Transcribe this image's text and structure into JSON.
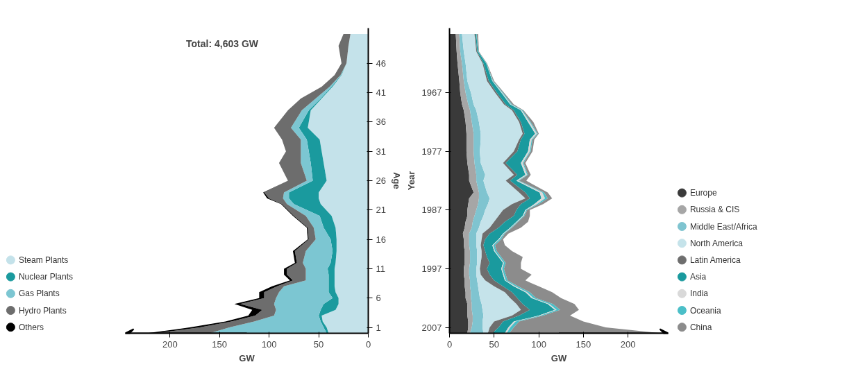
{
  "chart_data": [
    {
      "type": "area",
      "stacked": true,
      "orientation": "horizontal",
      "xlabel": "GW",
      "ylabel": "Age",
      "annotations": [
        "Total: 4,603 GW"
      ],
      "x": [
        0,
        1,
        2,
        3,
        4,
        5,
        6,
        7,
        8,
        9,
        10,
        11,
        12,
        14,
        16,
        18,
        20,
        22,
        23,
        24,
        26,
        29,
        31,
        33,
        35,
        38,
        40,
        42,
        44,
        46,
        49,
        51
      ],
      "xlim": [
        245,
        0
      ],
      "xticks": [
        200,
        150,
        100,
        50,
        0
      ],
      "ylim": [
        0,
        52
      ],
      "yticks": [
        1,
        6,
        11,
        16,
        21,
        26,
        31,
        36,
        41,
        46
      ],
      "grid": false,
      "legend": "left",
      "series": [
        {
          "name": "Steam Plants",
          "color": "#c4e2ea",
          "values": [
            40,
            42,
            46,
            47,
            33,
            30,
            30,
            33,
            34,
            34,
            34,
            34,
            33,
            32,
            32,
            33,
            37,
            48,
            50,
            50,
            42,
            45,
            47,
            49,
            61,
            58,
            47,
            36,
            27,
            22,
            20,
            18
          ]
        },
        {
          "name": "Nuclear Plants",
          "color": "#1a9a9e",
          "values": [
            2,
            3,
            2,
            3,
            15,
            15,
            6,
            7,
            6,
            6,
            6,
            7,
            5,
            4,
            6,
            12,
            12,
            27,
            30,
            30,
            14,
            13,
            13,
            13,
            9,
            2,
            1,
            1,
            0.5,
            0,
            0,
            0
          ]
        },
        {
          "name": "Gas Plants",
          "color": "#7cc6d2",
          "values": [
            118,
            95,
            67,
            45,
            45,
            50,
            57,
            50,
            45,
            23,
            23,
            22,
            28,
            27,
            15,
            10,
            14,
            7,
            6,
            5,
            6,
            10,
            8,
            6,
            8,
            7,
            5,
            2,
            0.5,
            0,
            0,
            0
          ]
        },
        {
          "name": "Hydro Plants",
          "color": "#6d6d6d",
          "values": [
            55,
            30,
            23,
            19,
            14,
            34,
            12,
            15,
            7,
            13,
            19,
            19,
            6,
            11,
            7,
            6,
            12,
            5,
            14,
            20,
            19,
            22,
            15,
            19,
            17,
            14,
            15,
            8,
            6,
            5,
            10,
            7
          ]
        },
        {
          "name": "Others",
          "color": "#000000",
          "values": [
            9,
            10,
            6,
            7,
            10,
            6,
            5,
            5,
            5,
            3,
            3,
            3,
            2,
            2,
            1,
            1,
            1,
            1,
            2,
            1,
            0,
            0,
            0,
            0,
            0,
            0,
            0,
            0,
            0,
            0,
            0,
            0
          ]
        }
      ]
    },
    {
      "type": "area",
      "stacked": true,
      "orientation": "horizontal",
      "xlabel": "GW",
      "ylabel": "Year",
      "x": [
        1957,
        1960,
        1962,
        1965,
        1967,
        1969,
        1970,
        1972,
        1974,
        1975,
        1977,
        1979,
        1981,
        1982,
        1984,
        1985,
        1986,
        1987,
        1988,
        1989,
        1990,
        1991,
        1992,
        1993,
        1994,
        1995,
        1996,
        1997,
        1998,
        1999,
        2000,
        2001,
        2002,
        2003,
        2004,
        2005,
        2006,
        2007,
        2008
      ],
      "xlim": [
        0,
        245
      ],
      "xticks": [
        0,
        50,
        100,
        150,
        200
      ],
      "ylim": [
        2008,
        1956
      ],
      "yticks": [
        1967,
        1977,
        1987,
        1997,
        2007
      ],
      "grid": false,
      "legend": "right",
      "series": [
        {
          "name": "Europe",
          "color": "#3a3a3a",
          "values": [
            7,
            8,
            9,
            11,
            12,
            14,
            16,
            18,
            19,
            19,
            19,
            20,
            22,
            22,
            27,
            22,
            21,
            20,
            20,
            18,
            17,
            15,
            16,
            16,
            17,
            17,
            17,
            16,
            16,
            17,
            17,
            18,
            18,
            20,
            20,
            20,
            21,
            21,
            20
          ]
        },
        {
          "name": "Russia & CIS",
          "color": "#a6a6a6",
          "values": [
            4,
            4,
            5,
            5,
            6,
            7,
            7,
            7,
            8,
            8,
            8,
            8,
            8,
            8,
            6,
            11,
            11,
            10,
            8,
            8,
            8,
            7,
            6,
            6,
            6,
            6,
            6,
            6,
            6,
            6,
            6,
            6,
            6,
            5,
            5,
            6,
            5,
            4,
            3
          ]
        },
        {
          "name": "Middle East/Africa",
          "color": "#7fc4d0",
          "values": [
            3,
            4,
            4,
            4,
            6,
            6,
            7,
            8,
            8,
            8,
            7,
            7,
            10,
            8,
            9,
            12,
            11,
            10,
            10,
            9,
            8,
            8,
            8,
            8,
            8,
            8,
            8,
            8,
            8,
            8,
            9,
            9,
            10,
            11,
            12,
            12,
            11,
            12,
            15
          ]
        },
        {
          "name": "North America",
          "color": "#c5e3ea",
          "values": [
            14,
            14,
            19,
            22,
            27,
            34,
            40,
            45,
            47,
            43,
            38,
            25,
            32,
            25,
            36,
            40,
            27,
            20,
            17,
            15,
            12,
            7,
            6,
            5,
            5,
            5,
            4,
            4,
            5,
            9,
            18,
            29,
            34,
            39,
            43,
            32,
            13,
            8,
            5
          ]
        },
        {
          "name": "Latin America",
          "color": "#6e6e6e",
          "values": [
            1,
            1,
            1,
            2,
            2,
            2,
            2,
            2,
            2,
            2,
            4,
            3,
            4,
            5,
            7,
            5,
            10,
            15,
            17,
            12,
            10,
            8,
            4,
            3,
            4,
            6,
            10,
            8,
            10,
            10,
            10,
            8,
            8,
            7,
            10,
            8,
            10,
            10,
            5
          ]
        },
        {
          "name": "Asia",
          "color": "#1a9a9e",
          "values": [
            1,
            1,
            3,
            4,
            5,
            5,
            8,
            8,
            12,
            10,
            12,
            17,
            9,
            7,
            16,
            13,
            15,
            10,
            10,
            13,
            13,
            15,
            15,
            10,
            10,
            13,
            15,
            16,
            15,
            12,
            12,
            15,
            16,
            28,
            28,
            22,
            12,
            11,
            14
          ]
        },
        {
          "name": "India",
          "color": "#d9d9d9",
          "values": [
            0,
            0,
            0,
            0.5,
            1,
            1,
            1,
            2,
            2,
            2,
            2,
            2,
            2,
            2,
            3,
            4,
            3,
            1,
            1,
            1,
            1,
            1,
            1,
            1,
            1,
            1,
            1,
            1,
            1,
            1,
            2,
            2,
            2,
            2,
            2,
            2,
            2,
            2,
            2
          ]
        },
        {
          "name": "Oceania",
          "color": "#4bbfc8",
          "values": [
            0.5,
            0.5,
            0.5,
            0.5,
            1,
            1,
            1,
            1,
            1,
            1,
            1,
            1,
            1,
            1,
            2,
            3,
            2,
            1,
            1,
            1,
            1,
            1,
            2,
            2,
            2,
            2,
            2,
            2,
            2,
            2,
            3,
            3,
            3,
            4,
            4,
            3,
            4,
            4,
            3
          ]
        },
        {
          "name": "China",
          "color": "#8c8c8c",
          "values": [
            1.5,
            0.5,
            0.5,
            1,
            1,
            2,
            1,
            3,
            1,
            2,
            2,
            2,
            3,
            8,
            4,
            5,
            5,
            3,
            6,
            11,
            10,
            4,
            2,
            11,
            17,
            24,
            17,
            19,
            29,
            20,
            23,
            25,
            28,
            24,
            21,
            30,
            72,
            103,
            171
          ]
        }
      ]
    }
  ]
}
